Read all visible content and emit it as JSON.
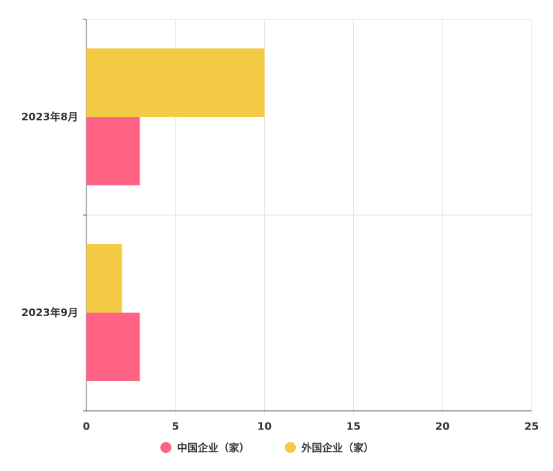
{
  "chart_data": {
    "type": "hbar",
    "categories": [
      "2023年8月",
      "2023年9月"
    ],
    "series": [
      {
        "name": "中国企业（家）",
        "color": "#ff6384",
        "values": [
          3,
          3
        ]
      },
      {
        "name": "外国企业（家）",
        "color": "#f4cb45",
        "values": [
          10,
          2
        ]
      }
    ],
    "xlim": [
      0,
      25
    ],
    "xticks": [
      0,
      5,
      10,
      15,
      20,
      25
    ],
    "grid": true,
    "legend": "bottom"
  }
}
